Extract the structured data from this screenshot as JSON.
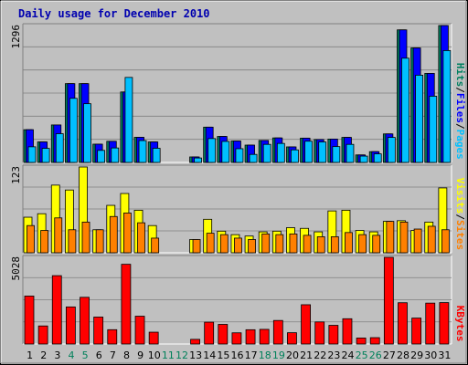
{
  "chart_data": {
    "type": "bar",
    "title": "Daily usage for December 2010",
    "days": [
      "1",
      "2",
      "3",
      "4",
      "5",
      "6",
      "7",
      "8",
      "9",
      "10",
      "11",
      "12",
      "13",
      "14",
      "15",
      "16",
      "17",
      "18",
      "19",
      "20",
      "21",
      "22",
      "23",
      "24",
      "25",
      "26",
      "27",
      "28",
      "29",
      "30",
      "31"
    ],
    "weekend_days": [
      "4",
      "5",
      "11",
      "12",
      "18",
      "19",
      "25",
      "26"
    ],
    "panels": [
      {
        "name": "pages-files-hits",
        "ymax": 1296,
        "ymax_label": "1296",
        "legend": [
          {
            "text": "Pages",
            "color": "#00c0ff"
          },
          {
            "text": "/",
            "color": "#000000"
          },
          {
            "text": "Files",
            "color": "#0000ff"
          },
          {
            "text": "/",
            "color": "#000000"
          },
          {
            "text": "Hits",
            "color": "#008060"
          }
        ],
        "series": [
          {
            "name": "Hits",
            "color": "#008060",
            "values": [
              310,
              194,
              355,
              746,
              746,
              173,
              200,
              667,
              238,
              194,
              0,
              0,
              52,
              334,
              246,
              203,
              164,
              208,
              232,
              147,
              230,
              217,
              221,
              237,
              71,
              102,
              270,
              1255,
              1084,
              843,
              1296
            ]
          },
          {
            "name": "Files",
            "color": "#0000ff",
            "values": [
              310,
              194,
              355,
              746,
              746,
              173,
              200,
              667,
              238,
              194,
              0,
              0,
              52,
              334,
              246,
              203,
              164,
              208,
              232,
              147,
              230,
              217,
              221,
              237,
              71,
              102,
              270,
              1255,
              1084,
              843,
              1296
            ]
          },
          {
            "name": "Pages",
            "color": "#00c0ff",
            "values": [
              148,
              133,
              272,
              607,
              556,
              114,
              137,
              805,
              207,
              134,
              0,
              0,
              42,
              226,
              199,
              130,
              76,
              171,
              180,
              119,
              201,
              194,
              150,
              171,
              60,
              81,
              237,
              987,
              826,
              627,
              1059
            ]
          }
        ]
      },
      {
        "name": "visits-sites",
        "ymax": 123,
        "ymax_label": "123",
        "legend": [
          {
            "text": "Sites",
            "color": "#ff8000"
          },
          {
            "text": "/",
            "color": "#000000"
          },
          {
            "text": "Visits",
            "color": "#ffff00"
          }
        ],
        "series": [
          {
            "name": "Visits",
            "color": "#ffff00",
            "values": [
              51,
              56,
              97,
              90,
              123,
              33,
              68,
              85,
              61,
              39,
              0,
              0,
              19,
              48,
              31,
              26,
              24,
              30,
              31,
              36,
              35,
              30,
              60,
              61,
              32,
              30,
              45,
              46,
              32,
              44,
              93
            ]
          },
          {
            "name": "Sites",
            "color": "#ff8000",
            "values": [
              39,
              32,
              50,
              33,
              44,
              33,
              52,
              57,
              43,
              21,
              0,
              0,
              19,
              28,
              26,
              21,
              19,
              27,
              26,
              27,
              25,
              23,
              23,
              29,
              26,
              25,
              45,
              44,
              34,
              38,
              33
            ]
          }
        ]
      },
      {
        "name": "kbytes",
        "ymax": 5028,
        "ymax_label": "5028",
        "legend": [
          {
            "text": "KBytes",
            "color": "#ff0000"
          }
        ],
        "series": [
          {
            "name": "KBytes",
            "color": "#ff0000",
            "values": [
              2782,
              1048,
              3965,
              2151,
              2710,
              1564,
              831,
              4624,
              1614,
              686,
              0,
              0,
              271,
              1268,
              1138,
              649,
              829,
              850,
              1366,
              655,
              2278,
              1281,
              1083,
              1466,
              348,
              369,
              5028,
              2395,
              1504,
              2373,
              2402
            ]
          }
        ]
      }
    ]
  }
}
